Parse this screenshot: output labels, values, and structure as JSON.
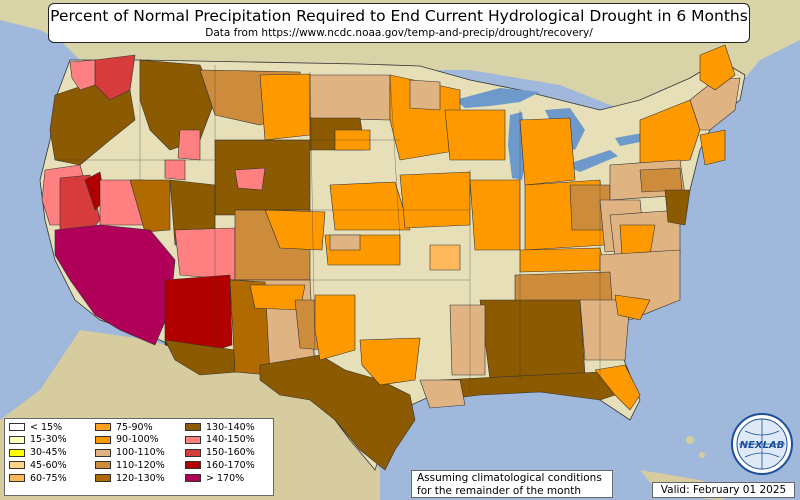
{
  "title": "Percent of Normal Precipitation Required to End Current Hydrological Drought in 6 Months",
  "subtitle": "Data from https://www.ncdc.noaa.gov/temp-and-precip/drought/recovery/",
  "legend": {
    "items": [
      {
        "label": "< 15%",
        "color": "#ffffff"
      },
      {
        "label": "15-30%",
        "color": "#ffffc0"
      },
      {
        "label": "30-45%",
        "color": "#ffff00"
      },
      {
        "label": "45-60%",
        "color": "#ffd38a"
      },
      {
        "label": "60-75%",
        "color": "#ffb95c"
      },
      {
        "label": "75-90%",
        "color": "#ffa020"
      },
      {
        "label": "90-100%",
        "color": "#ff9900"
      },
      {
        "label": "100-110%",
        "color": "#e0b482"
      },
      {
        "label": "110-120%",
        "color": "#cd8c3c"
      },
      {
        "label": "120-130%",
        "color": "#b06a00"
      },
      {
        "label": "130-140%",
        "color": "#8c5a00"
      },
      {
        "label": "140-150%",
        "color": "#ff8080"
      },
      {
        "label": "150-160%",
        "color": "#d63c3c"
      },
      {
        "label": "160-170%",
        "color": "#b00000"
      },
      {
        "label": "> 170%",
        "color": "#b0005a"
      }
    ]
  },
  "note": {
    "line1": "Assuming climatological conditions",
    "line2": "for the remainder of the month"
  },
  "valid": "Valid: February 01 2025",
  "logo_text": "NEXLAB",
  "colors": {
    "ocean": "#9fb8dc",
    "land": "#e6dfb8",
    "lakes": "#6d9acb"
  }
}
